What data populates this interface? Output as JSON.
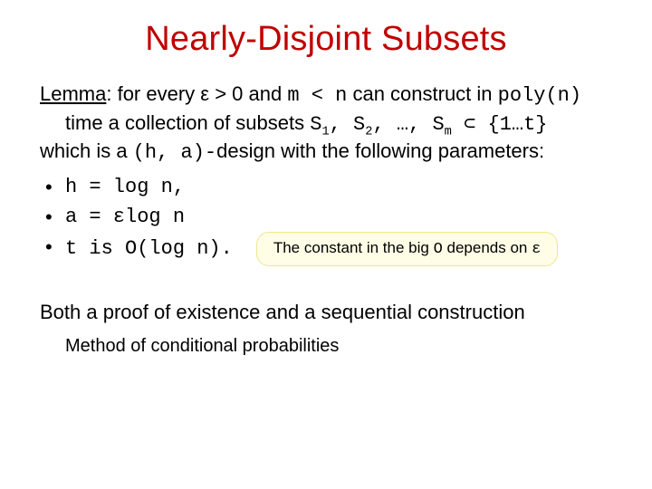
{
  "colors": {
    "title": "#c00000",
    "text": "#000000",
    "note_bg": "#fffde6",
    "note_border": "#f0e68c",
    "background": "#ffffff"
  },
  "typography": {
    "title_fontsize": 38,
    "body_fontsize": 22,
    "note_fontsize": 17,
    "subline_fontsize": 20,
    "title_font": "Arial",
    "mono_font": "Courier New"
  },
  "title": "Nearly-Disjoint Subsets",
  "lemma": {
    "label": "Lemma",
    "line1_part1": ": for every ε > 0 and ",
    "line1_m_n": "m < n",
    "line1_part2": " can construct in ",
    "line1_poly": "poly(n)",
    "line2_prefix": "time a collection of subsets ",
    "line2_sets_html": "S<span class=\"sub\">1</span>, S<span class=\"sub\">2</span>, …, S<span class=\"sub\">m</span> ⊂ {1…t}",
    "line3_part1": "which is a ",
    "line3_ha": "(h, a)-",
    "line3_part2": "design with the following parameters:"
  },
  "params": [
    "h = log n,",
    "a = εlog n",
    "t is O(log n)."
  ],
  "note_html": "The constant in the big <span class=\"mono\">O</span> depends on <span class=\"mono\">ε</span>",
  "closing": {
    "line1": "Both a proof of existence and a sequential construction",
    "line2": "Method of conditional probabilities"
  }
}
